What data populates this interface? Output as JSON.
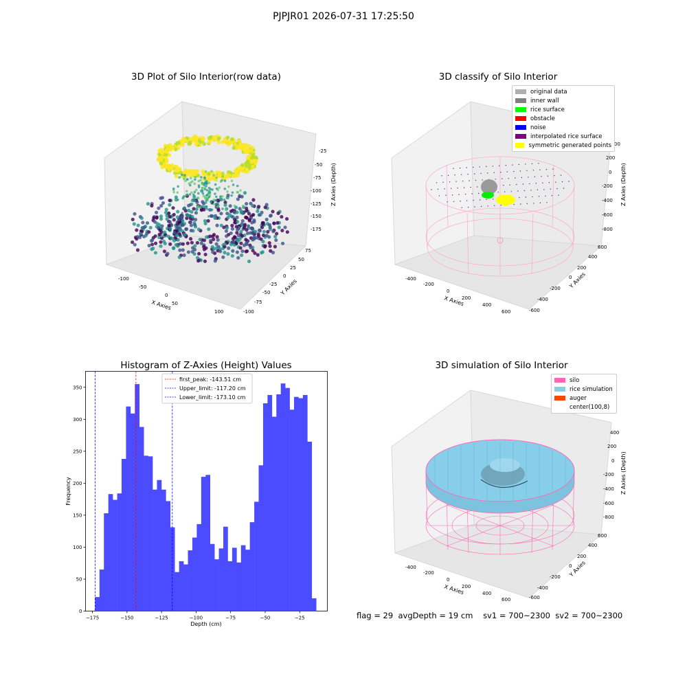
{
  "suptitle": "PJPJR01 2026-07-31 17:25:50",
  "panels": {
    "raw": {
      "title": "3D Plot of Silo Interior(row data)",
      "xlabel": "X Axies",
      "ylabel": "Y Axies",
      "zlabel": "Z Axies (Depth)",
      "xticks": [
        "-100",
        "-50",
        "0",
        "50",
        "100"
      ],
      "yticks": [
        "75",
        "50",
        "25",
        "0",
        "-25",
        "-50",
        "-75",
        "-100"
      ],
      "zticks": [
        "-25",
        "-50",
        "-75",
        "-100",
        "-125",
        "-150",
        "-175"
      ]
    },
    "classify": {
      "title": "3D classify of Silo Interior",
      "xlabel": "X Axies",
      "ylabel": "Y Axies",
      "zlabel": "Z Axies (Depth)",
      "xticks": [
        "-400",
        "-200",
        "0",
        "200",
        "400",
        "600"
      ],
      "yticks": [
        "600",
        "400",
        "200",
        "0",
        "-200",
        "-400",
        "-600"
      ],
      "zticks": [
        "200",
        "0",
        "-200",
        "-400",
        "-600",
        "-800"
      ],
      "ztick_top_partial": "00",
      "legend": [
        {
          "label": "original data",
          "color": "#b0b0b0"
        },
        {
          "label": "inner wall",
          "color": "#808080"
        },
        {
          "label": "rice surface",
          "color": "#00ff00"
        },
        {
          "label": "obstacle",
          "color": "#ff0000"
        },
        {
          "label": "noise",
          "color": "#0000ff"
        },
        {
          "label": "interpolated rice surface",
          "color": "#800080"
        },
        {
          "label": "symmetric generated points",
          "color": "#ffff00"
        }
      ]
    },
    "simulation": {
      "title": "3D simulation of Silo Interior",
      "xlabel": "X Axies",
      "ylabel": "Y Axies",
      "zlabel": "Z Axies (Depth)",
      "xticks": [
        "-400",
        "-200",
        "0",
        "200",
        "400",
        "600"
      ],
      "yticks": [
        "600",
        "400",
        "200",
        "0",
        "-200",
        "-400",
        "-600"
      ],
      "zticks": [
        "400",
        "200",
        "0",
        "-200",
        "-400",
        "-600",
        "-800"
      ],
      "legend": [
        {
          "label": "silo",
          "color": "#ff69b4"
        },
        {
          "label": "rice simulation",
          "color": "#87ceeb"
        },
        {
          "label": "auger",
          "color": "#ff4500"
        },
        {
          "label": "center(100,8)",
          "color": "#ffffff"
        }
      ]
    }
  },
  "footer": {
    "flag": "flag = 29",
    "avg": "avgDepth = 19 cm",
    "sv1": "sv1 = 700~2300",
    "sv2": "sv2 = 700~2300"
  },
  "chart_data": [
    {
      "type": "bar",
      "title": "Histogram of Z-Axies (Height) Values",
      "xlabel": "Depth (cm)",
      "ylabel": "Frequency",
      "xlim": [
        -180,
        -5
      ],
      "ylim": [
        0,
        375
      ],
      "xticks": [
        -175,
        -150,
        -125,
        -100,
        -75,
        -50,
        -25
      ],
      "yticks": [
        0,
        50,
        100,
        150,
        200,
        250,
        300,
        350
      ],
      "bar_color": "#4b4bff",
      "bin_edges_start": -173.1,
      "bin_width": 3.2,
      "values": [
        22,
        65,
        153,
        183,
        174,
        184,
        238,
        320,
        309,
        355,
        288,
        243,
        242,
        190,
        205,
        190,
        172,
        131,
        61,
        78,
        73,
        95,
        115,
        136,
        210,
        213,
        105,
        81,
        98,
        132,
        78,
        99,
        76,
        103,
        96,
        139,
        171,
        228,
        325,
        338,
        304,
        339,
        356,
        349,
        315,
        335,
        333,
        338,
        265,
        20
      ],
      "lines": [
        {
          "label": "first_peak: -143.51 cm",
          "x": -143.51,
          "color": "#ff0000"
        },
        {
          "label": "Upper_limit: -117.20 cm",
          "x": -117.2,
          "color": "#0000ff"
        },
        {
          "label": "Lower_limit: -173.10 cm",
          "x": -173.1,
          "color": "#0000ff"
        }
      ]
    }
  ]
}
